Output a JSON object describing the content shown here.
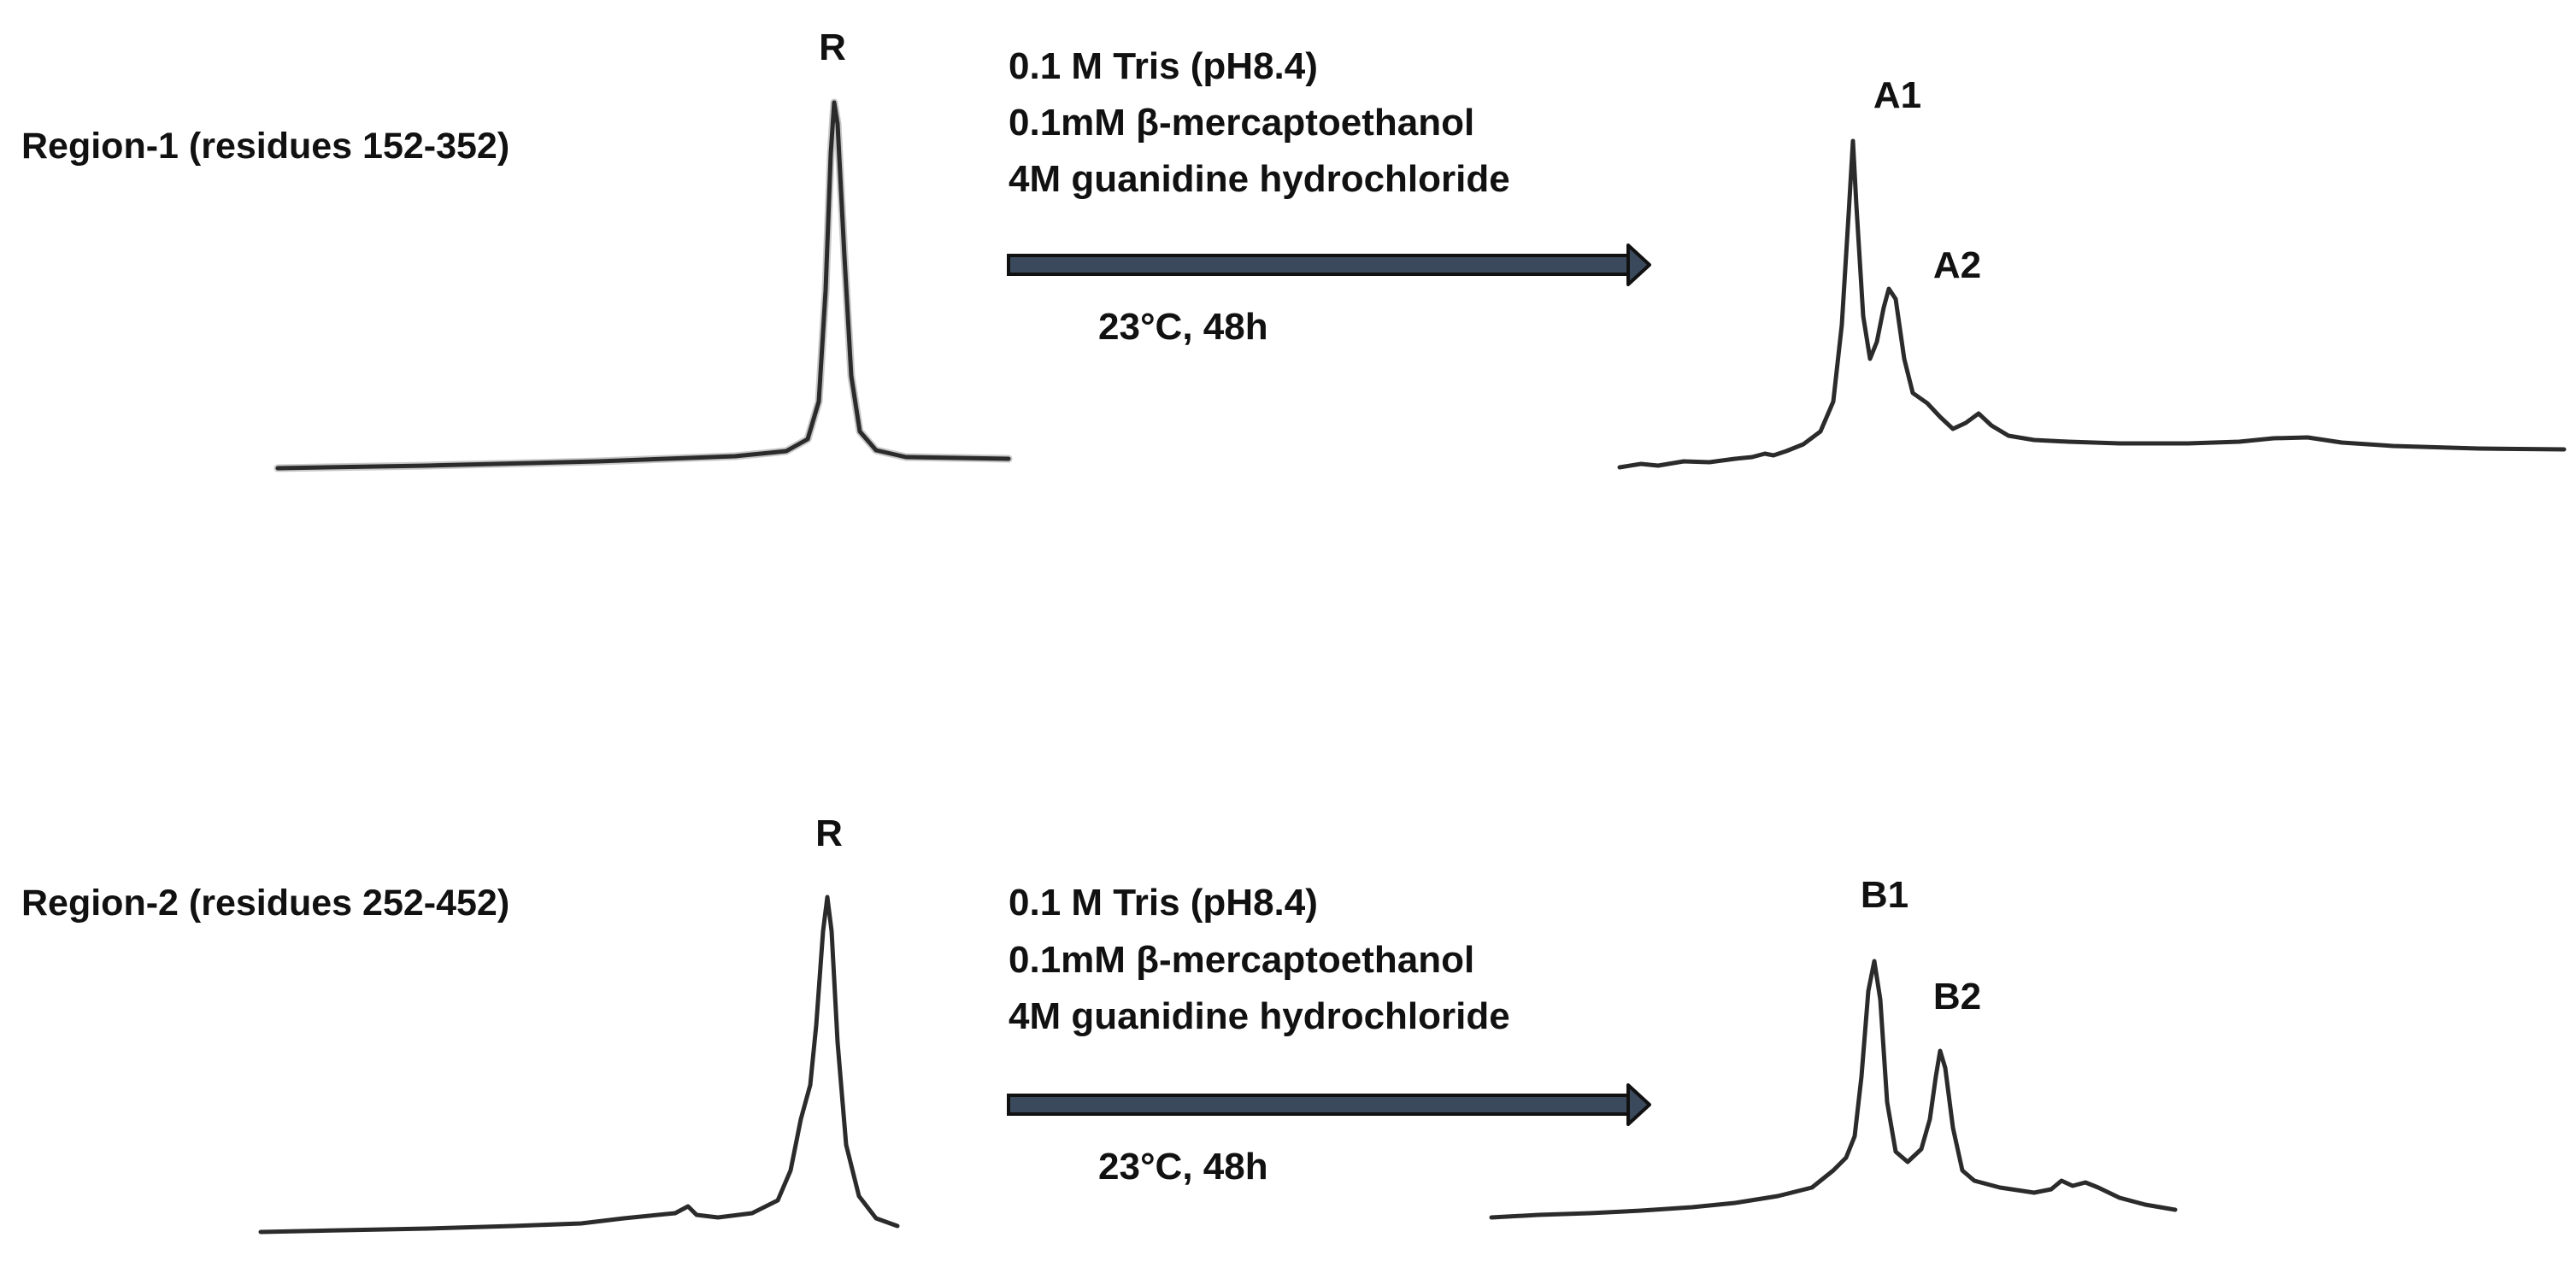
{
  "panels": [
    {
      "region_label": "Region-1 (residues 152-352)",
      "before_peak_label": "R",
      "conditions": [
        "0.1 M Tris (pH8.4)",
        "0.1mM β-mercaptoethanol",
        "4M guanidine hydrochloride"
      ],
      "incubation": "23°C, 48h",
      "after_peak_labels": [
        "A1",
        "A2"
      ]
    },
    {
      "region_label": "Region-2 (residues 252-452)",
      "before_peak_label": "R",
      "conditions": [
        "0.1 M Tris (pH8.4)",
        "0.1mM β-mercaptoethanol",
        "4M guanidine hydrochloride"
      ],
      "incubation": "23°C, 48h",
      "after_peak_labels": [
        "B1",
        "B2"
      ]
    }
  ],
  "colors": {
    "trace": "#2b2b2b",
    "arrow_fill": "#3a4a5c",
    "arrow_outline": "#111111",
    "text": "#111111"
  }
}
